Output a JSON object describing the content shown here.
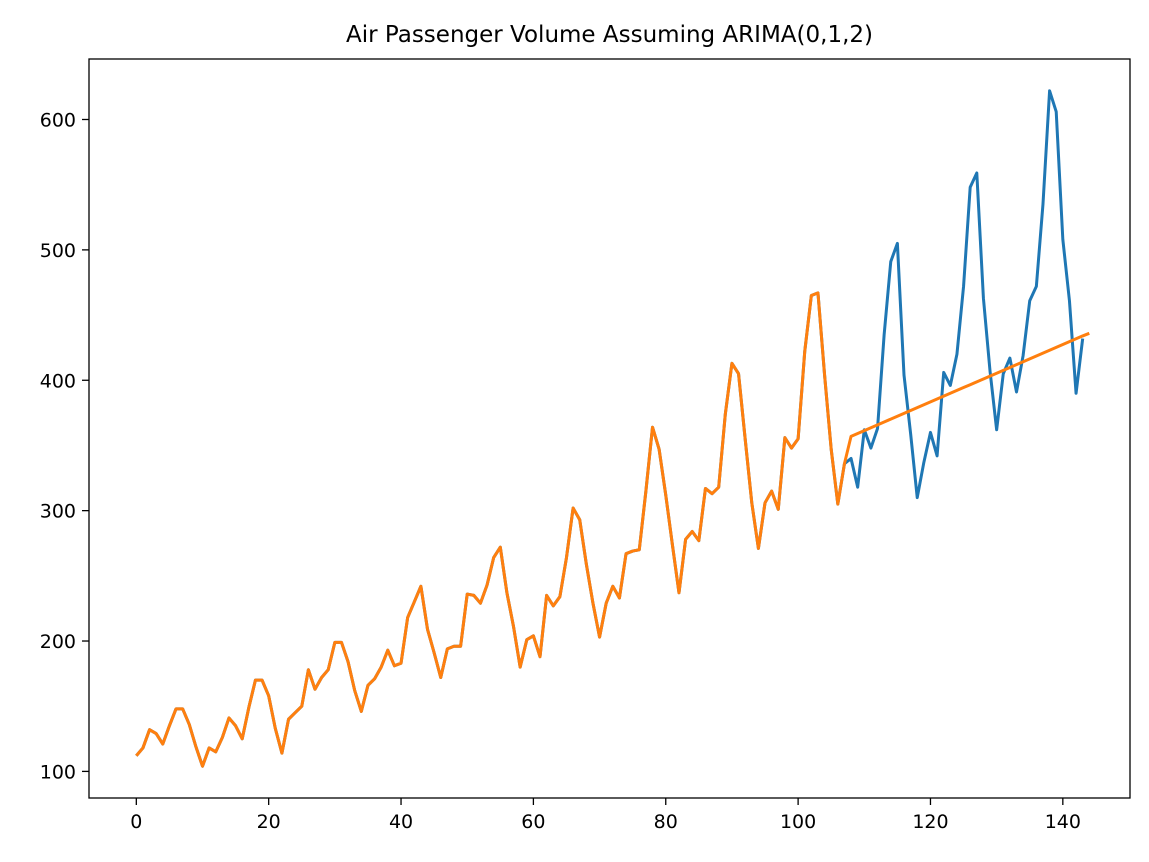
{
  "chart_data": {
    "type": "line",
    "title": "Air Passenger Volume Assuming ARIMA(0,1,2)",
    "xlabel": "",
    "ylabel": "",
    "xlim": [
      -7.15,
      150.15
    ],
    "ylim": [
      79.6,
      646.4
    ],
    "xticks": [
      0,
      20,
      40,
      60,
      80,
      100,
      120,
      140
    ],
    "yticks": [
      100,
      200,
      300,
      400,
      500,
      600
    ],
    "grid": false,
    "legend": "none",
    "series": [
      {
        "color": "#1f77b4",
        "x_start": 0,
        "values": [
          112,
          118,
          132,
          129,
          121,
          135,
          148,
          148,
          136,
          119,
          104,
          118,
          115,
          126,
          141,
          135,
          125,
          149,
          170,
          170,
          158,
          133,
          114,
          140,
          145,
          150,
          178,
          163,
          172,
          178,
          199,
          199,
          184,
          162,
          146,
          166,
          171,
          180,
          193,
          181,
          183,
          218,
          230,
          242,
          209,
          191,
          172,
          194,
          196,
          196,
          236,
          235,
          229,
          243,
          264,
          272,
          237,
          211,
          180,
          201,
          204,
          188,
          235,
          227,
          234,
          264,
          302,
          293,
          259,
          229,
          203,
          229,
          242,
          233,
          267,
          269,
          270,
          315,
          364,
          347,
          312,
          274,
          237,
          278,
          284,
          277,
          317,
          313,
          318,
          374,
          413,
          405,
          355,
          306,
          271,
          306,
          315,
          301,
          356,
          348,
          355,
          422,
          465,
          467,
          404,
          347,
          305,
          336,
          340,
          318,
          362,
          348,
          363,
          435,
          491,
          505,
          404,
          359,
          310,
          337,
          360,
          342,
          406,
          396,
          420,
          472,
          548,
          559,
          463,
          407,
          362,
          405,
          417,
          391,
          419,
          461,
          472,
          535,
          622,
          606,
          508,
          461,
          390,
          432
        ]
      },
      {
        "color": "#ff7f0e",
        "x_start": 0,
        "values": [
          112,
          118,
          132,
          129,
          121,
          135,
          148,
          148,
          136,
          119,
          104,
          118,
          115,
          126,
          141,
          135,
          125,
          149,
          170,
          170,
          158,
          133,
          114,
          140,
          145,
          150,
          178,
          163,
          172,
          178,
          199,
          199,
          184,
          162,
          146,
          166,
          171,
          180,
          193,
          181,
          183,
          218,
          230,
          242,
          209,
          191,
          172,
          194,
          196,
          196,
          236,
          235,
          229,
          243,
          264,
          272,
          237,
          211,
          180,
          201,
          204,
          188,
          235,
          227,
          234,
          264,
          302,
          293,
          259,
          229,
          203,
          229,
          242,
          233,
          267,
          269,
          270,
          315,
          364,
          347,
          312,
          274,
          237,
          278,
          284,
          277,
          317,
          313,
          318,
          374,
          413,
          405,
          355,
          306,
          271,
          306,
          315,
          301,
          356,
          348,
          355,
          422,
          465,
          467,
          404,
          347,
          305,
          336,
          357,
          359.2,
          361.4,
          363.6,
          365.8,
          368,
          370.2,
          372.4,
          374.6,
          376.8,
          379,
          381.2,
          383.4,
          385.6,
          387.8,
          390,
          392.2,
          394.4,
          396.6,
          398.8,
          401,
          403.2,
          405.4,
          407.6,
          409.8,
          412,
          414.2,
          416.4,
          418.6,
          420.8,
          423,
          425.2,
          427.4,
          429.6,
          431.8,
          434,
          436
        ]
      }
    ]
  }
}
